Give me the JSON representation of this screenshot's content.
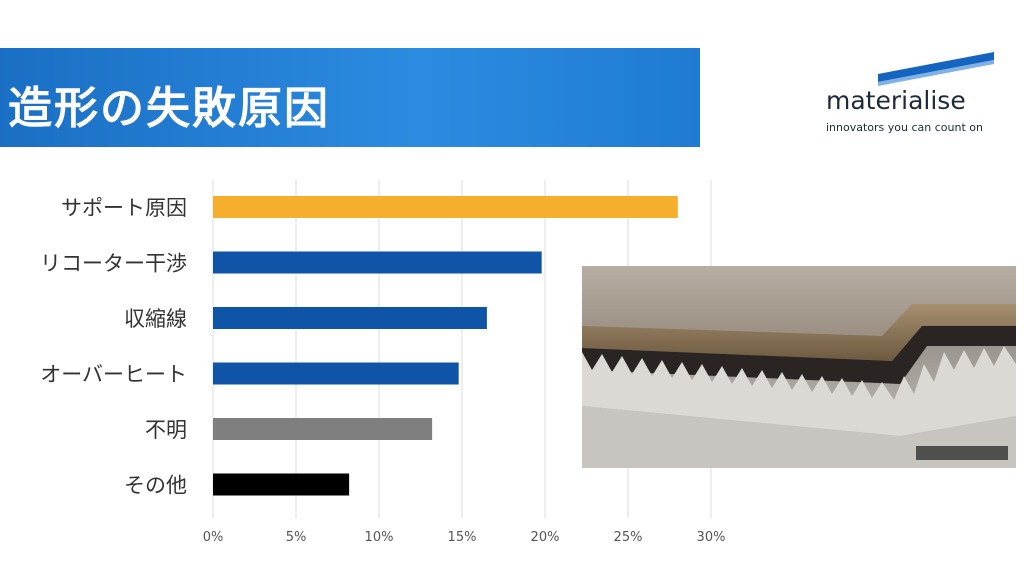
{
  "slide": {
    "title": "造形の失敗原因"
  },
  "logo": {
    "name": "materialise",
    "tagline": "innovators you can count on",
    "color": "#1565c0"
  },
  "chart_data": {
    "type": "bar",
    "orientation": "horizontal",
    "categories": [
      "サポート原因",
      "リコーター干渉",
      "収縮線",
      "オーバーヒート",
      "不明",
      "その他"
    ],
    "values": [
      28,
      19.8,
      16.5,
      14.8,
      13.2,
      8.2
    ],
    "colors": [
      "#f6ae2d",
      "#0f54a6",
      "#0f54a6",
      "#0f54a6",
      "#7f7f7f",
      "#000000"
    ],
    "xticks": [
      "0%",
      "5%",
      "10%",
      "15%",
      "20%",
      "25%",
      "30%"
    ],
    "xlim": [
      0,
      30
    ],
    "grid": true,
    "title": "",
    "xlabel": "",
    "ylabel": ""
  },
  "photo": {
    "icon": "metal-part-with-zigzag-support-icon"
  }
}
